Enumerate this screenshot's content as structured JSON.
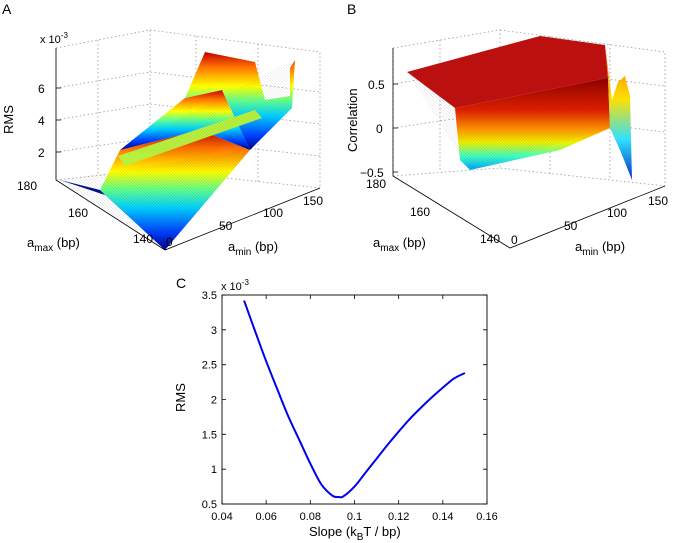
{
  "panels": {
    "A": {
      "letter": "A",
      "zlabel": "RMS",
      "exponent": "x 10",
      "exponent_power": "-3",
      "zticks": [
        "2",
        "4",
        "6"
      ],
      "xlabel_main": "a",
      "xlabel_sub": "min",
      "xlabel_unit": " (bp)",
      "xticks": [
        "0",
        "50",
        "100",
        "150"
      ],
      "ylabel_main": "a",
      "ylabel_sub": "max",
      "ylabel_unit": " (bp)",
      "yticks": [
        "180",
        "160",
        "140"
      ]
    },
    "B": {
      "letter": "B",
      "zlabel": "Correlation",
      "zticks": [
        "0.5",
        "0",
        "−0.5"
      ],
      "xlabel_main": "a",
      "xlabel_sub": "min",
      "xlabel_unit": " (bp)",
      "xticks": [
        "0",
        "50",
        "100",
        "150"
      ],
      "ylabel_main": "a",
      "ylabel_sub": "max",
      "ylabel_unit": " (bp)",
      "yticks": [
        "180",
        "160",
        "140"
      ]
    },
    "C": {
      "letter": "C",
      "exponent": "x 10",
      "exponent_power": "-3",
      "ylabel": "RMS",
      "xlabel_pre": "Slope (k",
      "xlabel_sub": "B",
      "xlabel_post": "T / bp)"
    }
  },
  "colors": {
    "line": "#0000ee",
    "colormap": "jet"
  },
  "chart_data": [
    {
      "type": "surface",
      "panel": "A",
      "zlabel": "RMS",
      "z_scale": "x 10^-3",
      "xlabel": "a_min (bp)",
      "ylabel": "a_max (bp)",
      "xlim": [
        0,
        150
      ],
      "ylim": [
        140,
        180
      ],
      "zlim": [
        0,
        8
      ],
      "grid": true,
      "colormap": "jet"
    },
    {
      "type": "surface",
      "panel": "B",
      "zlabel": "Correlation",
      "xlabel": "a_min (bp)",
      "ylabel": "a_max (bp)",
      "xlim": [
        0,
        150
      ],
      "ylim": [
        140,
        180
      ],
      "zlim": [
        -0.5,
        0.75
      ],
      "grid": true,
      "colormap": "jet"
    },
    {
      "type": "line",
      "panel": "C",
      "xlabel": "Slope (k_B T / bp)",
      "ylabel": "RMS",
      "y_scale": "x 10^-3",
      "xlim": [
        0.04,
        0.16
      ],
      "ylim": [
        0.5,
        3.5
      ],
      "xticks": [
        0.04,
        0.06,
        0.08,
        0.1,
        0.12,
        0.14,
        0.16
      ],
      "yticks": [
        0.5,
        1,
        1.5,
        2,
        2.5,
        3,
        3.5
      ],
      "grid": false,
      "series": [
        {
          "x": [
            0.05,
            0.055,
            0.06,
            0.065,
            0.07,
            0.075,
            0.08,
            0.085,
            0.09,
            0.093,
            0.095,
            0.1,
            0.105,
            0.11,
            0.115,
            0.12,
            0.125,
            0.13,
            0.135,
            0.14,
            0.145,
            0.15
          ],
          "y": [
            3.42,
            2.98,
            2.55,
            2.15,
            1.76,
            1.42,
            1.08,
            0.78,
            0.62,
            0.6,
            0.61,
            0.75,
            0.95,
            1.15,
            1.35,
            1.54,
            1.72,
            1.88,
            2.03,
            2.17,
            2.3,
            2.38
          ]
        }
      ]
    }
  ]
}
